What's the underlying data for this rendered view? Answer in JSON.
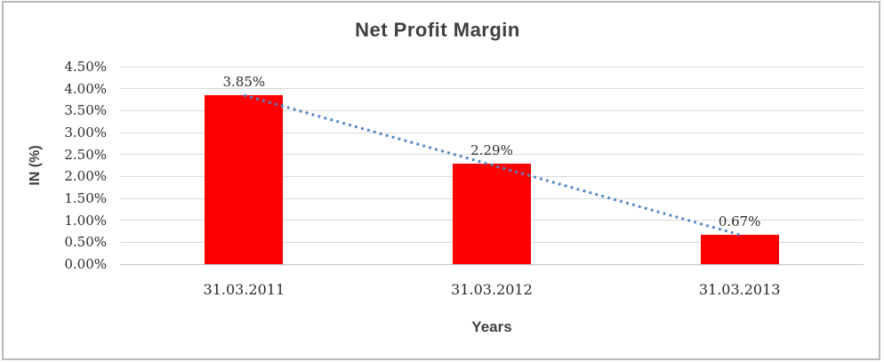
{
  "frame": {
    "border_color": "#b9b9b9"
  },
  "chart_data": {
    "type": "bar",
    "title": "Net Profit Margin",
    "xlabel": "Years",
    "ylabel": "IN (%)",
    "categories": [
      "31.03.2011",
      "31.03.2012",
      "31.03.2013"
    ],
    "values": [
      3.85,
      2.29,
      0.67
    ],
    "value_labels": [
      "3.85%",
      "2.29%",
      "0.67%"
    ],
    "ylim": [
      0,
      4.5
    ],
    "ytick_step": 0.5,
    "ytick_labels": [
      "0.00%",
      "0.50%",
      "1.00%",
      "1.50%",
      "2.00%",
      "2.50%",
      "3.00%",
      "3.50%",
      "4.00%",
      "4.50%"
    ],
    "grid": true,
    "legend": "none",
    "bar_color": "#ff0000",
    "gridline_color": "#d9d9d9",
    "trendline": {
      "type": "linear",
      "style": "dotted",
      "color": "#4e86c6"
    }
  }
}
